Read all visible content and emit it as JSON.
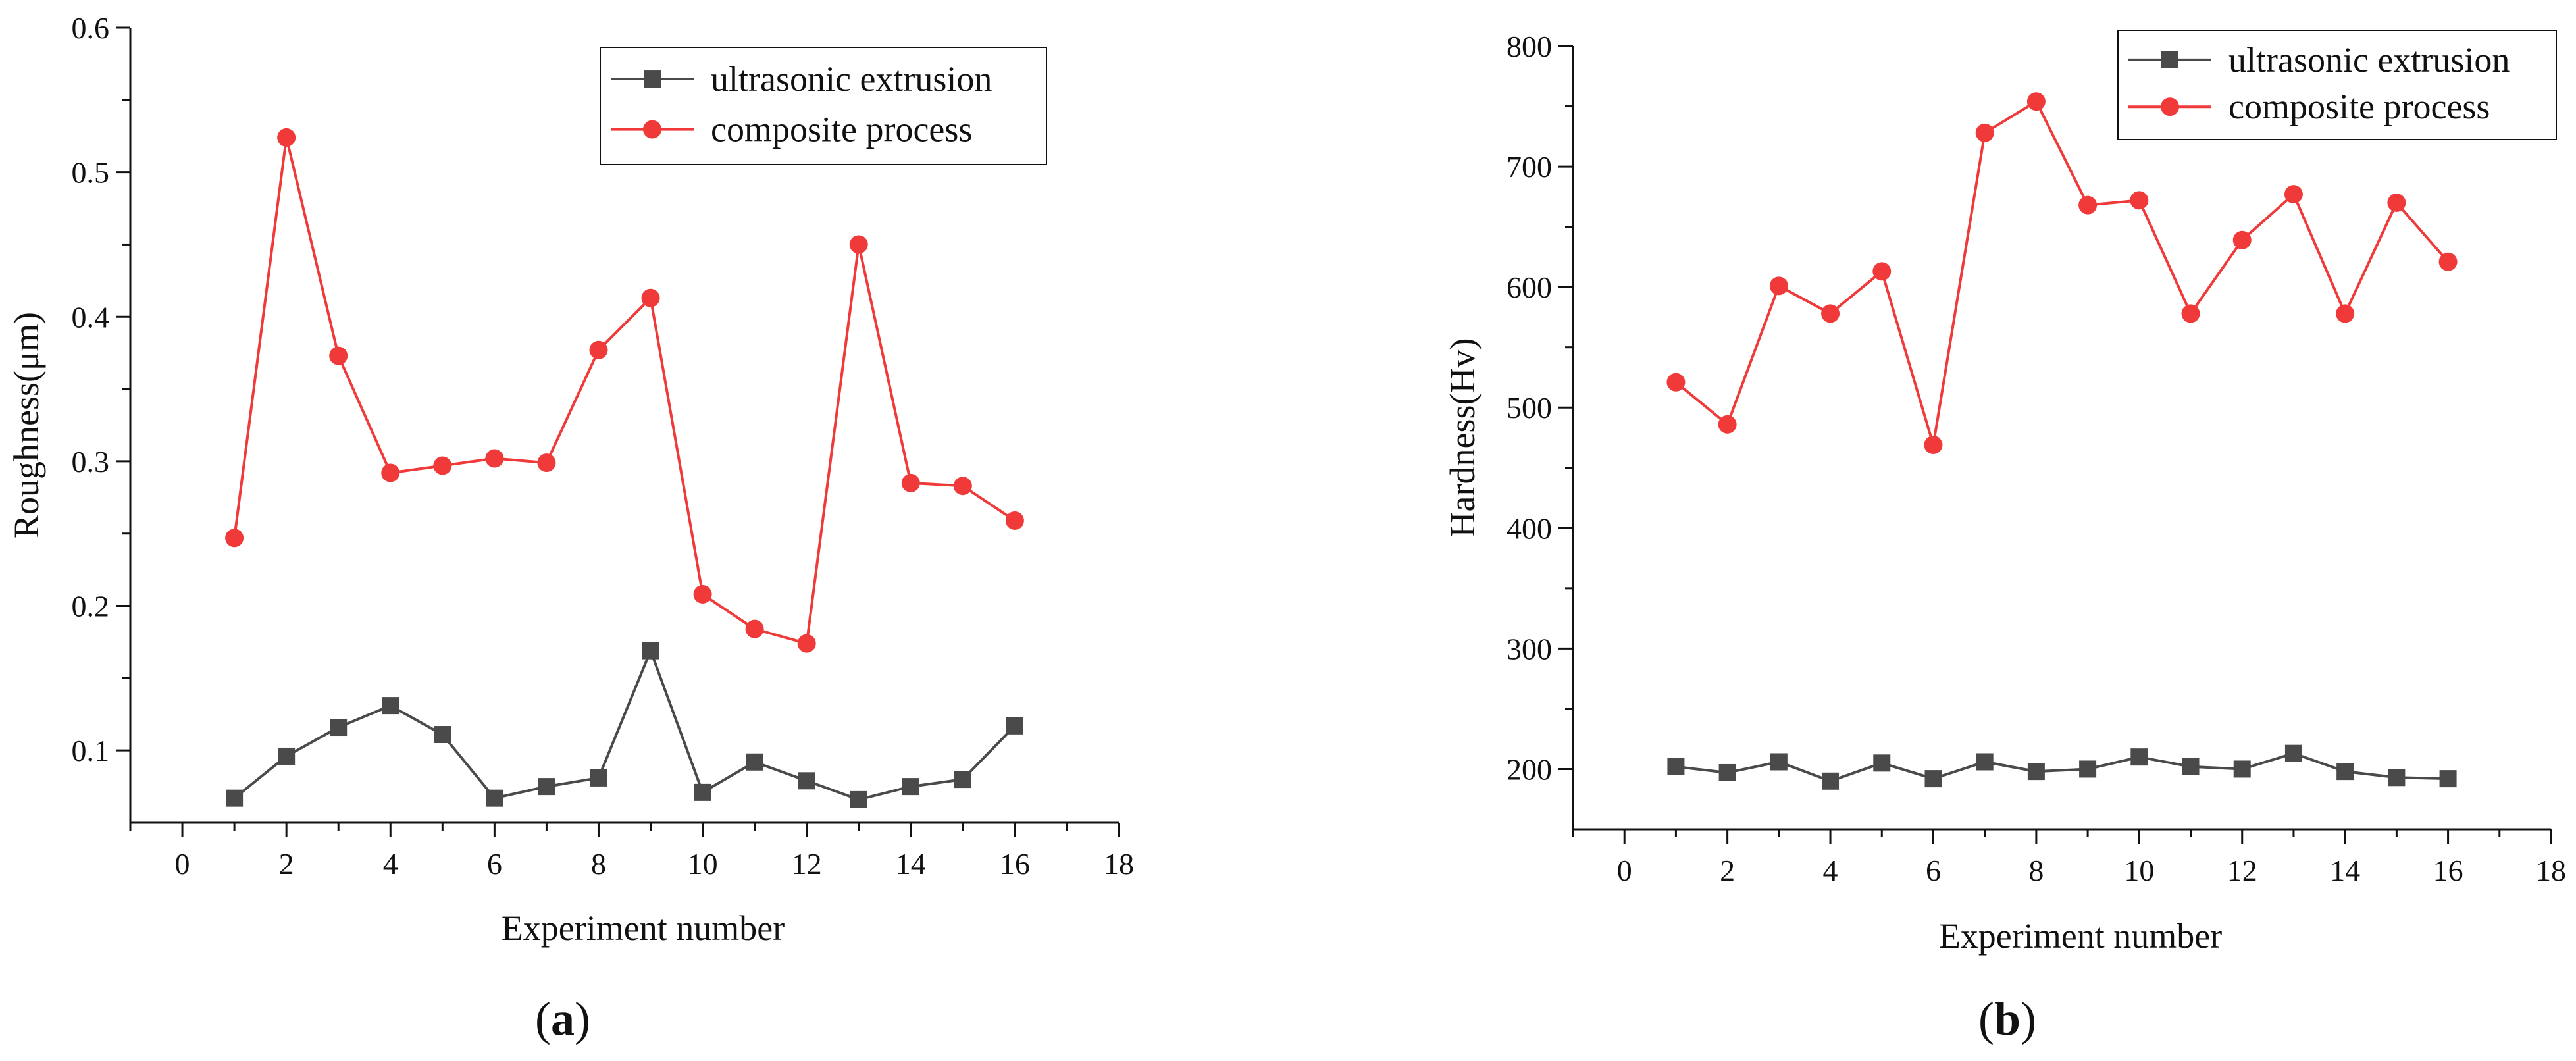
{
  "chart_data": [
    {
      "id": "a",
      "type": "line",
      "title": "",
      "panel_label": "a",
      "xlabel": "Experiment number",
      "ylabel": "Roughness(μm)",
      "xlim": [
        -1,
        18
      ],
      "ylim": [
        0.05,
        0.6
      ],
      "xticks": [
        0,
        2,
        4,
        6,
        8,
        10,
        12,
        14,
        16,
        18
      ],
      "yticks": [
        0.1,
        0.2,
        0.3,
        0.4,
        0.5,
        0.6
      ],
      "ytick_labels": [
        "0.1",
        "0.2",
        "0.3",
        "0.4",
        "0.5",
        "0.6"
      ],
      "x": [
        1,
        2,
        3,
        4,
        5,
        6,
        7,
        8,
        9,
        10,
        11,
        12,
        13,
        14,
        15,
        16
      ],
      "legend_position": "top-right",
      "series": [
        {
          "name": "ultrasonic extrusion",
          "color": "#4a4a4a",
          "marker": "square",
          "values": [
            0.067,
            0.096,
            0.116,
            0.131,
            0.111,
            0.067,
            0.075,
            0.081,
            0.169,
            0.071,
            0.092,
            0.079,
            0.066,
            0.075,
            0.08,
            0.117
          ]
        },
        {
          "name": "composite process",
          "color": "#f03a3a",
          "marker": "circle",
          "values": [
            0.247,
            0.524,
            0.373,
            0.292,
            0.297,
            0.302,
            0.299,
            0.377,
            0.413,
            0.208,
            0.184,
            0.174,
            0.45,
            0.285,
            0.283,
            0.259
          ]
        }
      ]
    },
    {
      "id": "b",
      "type": "line",
      "title": "",
      "panel_label": "b",
      "xlabel": "Experiment number",
      "ylabel": "Hardness(Hv)",
      "xlim": [
        -1,
        18
      ],
      "ylim": [
        150,
        800
      ],
      "xticks": [
        0,
        2,
        4,
        6,
        8,
        10,
        12,
        14,
        16,
        18
      ],
      "yticks": [
        200,
        300,
        400,
        500,
        600,
        700,
        800
      ],
      "ytick_labels": [
        "200",
        "300",
        "400",
        "500",
        "600",
        "700",
        "800"
      ],
      "x": [
        1,
        2,
        3,
        4,
        5,
        6,
        7,
        8,
        9,
        10,
        11,
        12,
        13,
        14,
        15,
        16
      ],
      "legend_position": "top-right",
      "series": [
        {
          "name": "ultrasonic extrusion",
          "color": "#4a4a4a",
          "marker": "square",
          "values": [
            202,
            197,
            206,
            190,
            205,
            192,
            206,
            198,
            200,
            210,
            202,
            200,
            213,
            198,
            193,
            192
          ]
        },
        {
          "name": "composite process",
          "color": "#f03a3a",
          "marker": "circle",
          "values": [
            521,
            486,
            601,
            578,
            613,
            469,
            728,
            754,
            668,
            672,
            578,
            639,
            677,
            578,
            670,
            621
          ]
        }
      ]
    }
  ]
}
